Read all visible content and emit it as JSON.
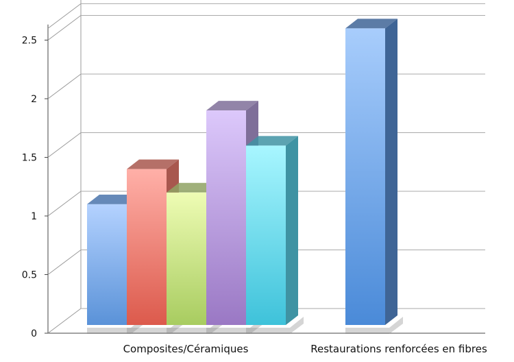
{
  "chart_data": {
    "type": "bar",
    "title": "",
    "xlabel": "",
    "ylabel": "",
    "ylim": [
      0,
      2.6
    ],
    "yticks": [
      "0",
      "0.5",
      "1",
      "1.5",
      "2",
      "2.5"
    ],
    "ytick_values": [
      0,
      0.5,
      1,
      1.5,
      2,
      2.5
    ],
    "grid": true,
    "style": "3d-column",
    "categories": [
      "Composites/Céramiques",
      "Restaurations renforcées en fibres"
    ],
    "groups": [
      {
        "category": "Composites/Céramiques",
        "bars": [
          {
            "value": 1.1,
            "color_top": "#b4d2ff",
            "color_bottom": "#5a92d8",
            "side": "#4a74ac"
          },
          {
            "value": 1.4,
            "color_top": "#ffb0a8",
            "color_bottom": "#dc5a4c",
            "side": "#a8574e"
          },
          {
            "value": 1.2,
            "color_top": "#eefcb4",
            "color_bottom": "#a8cc60",
            "side": "#8fa264"
          },
          {
            "value": 1.9,
            "color_top": "#dcc8fb",
            "color_bottom": "#9a78c4",
            "side": "#7f6f99"
          },
          {
            "value": 1.6,
            "color_top": "#a8f6ff",
            "color_bottom": "#3ec2da",
            "side": "#3f93a3"
          }
        ]
      },
      {
        "category": "Restaurations renforcées en fibres",
        "bars": [
          {
            "value": 2.6,
            "color_top": "#a8cdfc",
            "color_bottom": "#4a8ad8",
            "side": "#3f6596"
          }
        ]
      }
    ]
  }
}
